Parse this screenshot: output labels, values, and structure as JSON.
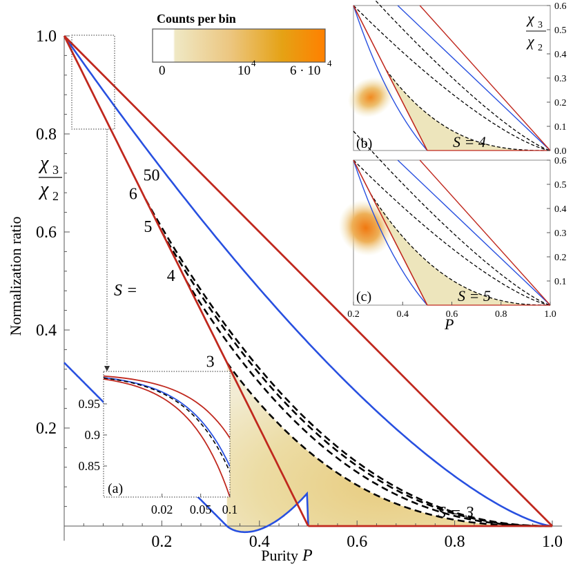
{
  "colors": {
    "red": "#c0281e",
    "blue": "#2850e0",
    "dashed": "#000000",
    "fill_light": "#ece4b8",
    "fill_mid": "#e8c878",
    "fill_orange": "#f08010",
    "hot": "#ff8000"
  },
  "colorbar": {
    "title": "Counts per bin",
    "ticks": [
      "0",
      "10",
      "4",
      "6 · 10",
      "4"
    ]
  },
  "chart_data": [
    {
      "id": "main",
      "type": "line",
      "xlabel": "Purity",
      "xlabel_var": "P",
      "ylabel": "Normalization ratio",
      "ylabel_num": "χ",
      "ylabel_num_sub": "3",
      "ylabel_den": "χ",
      "ylabel_den_sub": "2",
      "xlim": [
        0,
        1
      ],
      "ylim": [
        0,
        1
      ],
      "xticks": [
        "0.2",
        "0.4",
        "0.6",
        "0.8",
        "1.0"
      ],
      "yticks": [
        "0.2",
        "0.4",
        "0.6",
        "0.8",
        "1.0"
      ],
      "s_label": "S =",
      "region_label": "S = 3",
      "s_points": [
        {
          "label": "3",
          "x": 0.3333,
          "y": 0.3333
        },
        {
          "label": "4",
          "x": 0.25,
          "y": 0.5
        },
        {
          "label": "5",
          "x": 0.2,
          "y": 0.6
        },
        {
          "label": "6",
          "x": 0.1667,
          "y": 0.6667
        },
        {
          "label": "50",
          "x": 0.02,
          "y": 0.96
        }
      ],
      "series": [
        {
          "name": "upper bound",
          "style": "red-solid",
          "points": [
            [
              0,
              1
            ],
            [
              1,
              0
            ]
          ]
        },
        {
          "name": "lower bound (from 1.0)",
          "style": "red-solid",
          "points": [
            [
              0,
              1
            ],
            [
              0.3333,
              0.3333
            ]
          ]
        },
        {
          "name": "lower bound (to 0.5)",
          "style": "red-solid",
          "points": [
            [
              0.3333,
              0.3333
            ],
            [
              0.5,
              0
            ]
          ]
        },
        {
          "name": "blue boundary",
          "style": "blue-solid",
          "curve": "blue"
        },
        {
          "name": "S=3",
          "style": "dashed",
          "from": [
            0.3333,
            0.3333
          ]
        },
        {
          "name": "S=4",
          "style": "dashed",
          "from": [
            0.25,
            0.5
          ]
        },
        {
          "name": "S=5",
          "style": "dashed",
          "from": [
            0.2,
            0.6
          ]
        },
        {
          "name": "S=6",
          "style": "dashed",
          "from": [
            0.1667,
            0.6667
          ]
        }
      ]
    },
    {
      "id": "inset_a",
      "type": "line",
      "panel_label": "(a)",
      "xscale": "log",
      "xlim": [
        0.005,
        0.1
      ],
      "ylim": [
        0.8,
        1.0
      ],
      "xticks": [
        "0.02",
        "0.05",
        "0.1"
      ],
      "yticks": [
        "0.95",
        "0.9",
        "0.85"
      ]
    },
    {
      "id": "inset_b",
      "type": "heatmap",
      "panel_label": "(b)",
      "region_label": "S = 4",
      "xlim": [
        0.2,
        1.0
      ],
      "ylim": [
        0,
        0.6
      ],
      "yticks": [
        "0.0",
        "0.1",
        "0.2",
        "0.3",
        "0.4",
        "0.5",
        "0.6"
      ],
      "ylabel_num": "χ",
      "ylabel_num_sub": "3",
      "ylabel_den": "χ",
      "ylabel_den_sub": "2",
      "hotspot": [
        0.27,
        0.22
      ]
    },
    {
      "id": "inset_c",
      "type": "heatmap",
      "panel_label": "(c)",
      "region_label": "S = 5",
      "xlim": [
        0.2,
        1.0
      ],
      "ylim": [
        0,
        0.6
      ],
      "xticks": [
        "0.2",
        "0.4",
        "0.6",
        "0.8",
        "1.0"
      ],
      "yticks": [
        "0.1",
        "0.2",
        "0.3",
        "0.4",
        "0.5",
        "0.6"
      ],
      "xlabel": "P",
      "hotspot": [
        0.25,
        0.32
      ]
    }
  ]
}
